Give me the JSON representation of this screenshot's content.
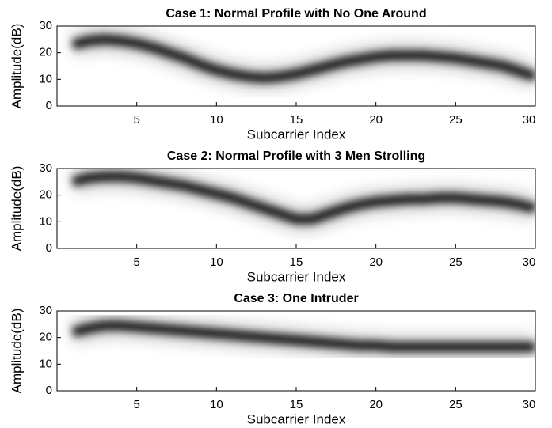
{
  "chart_data": [
    {
      "type": "line",
      "title": "Case 1: Normal Profile with No One Around",
      "xlabel": "Subcarrier Index",
      "ylabel": "Amplitude(dB)",
      "x": [
        1,
        2,
        3,
        4,
        5,
        6,
        7,
        8,
        9,
        10,
        11,
        12,
        13,
        14,
        15,
        16,
        17,
        18,
        19,
        20,
        21,
        22,
        23,
        24,
        25,
        26,
        27,
        28,
        29,
        30
      ],
      "values": [
        23,
        24.5,
        25,
        24.5,
        23.5,
        22,
        20,
        18,
        15.5,
        13.5,
        12,
        11,
        10.5,
        11,
        12,
        13.5,
        15,
        16.5,
        17.5,
        18.5,
        19,
        19,
        19,
        18.5,
        18,
        17,
        16,
        15,
        13,
        11
      ],
      "color": "#000000",
      "xlim": [
        0,
        30
      ],
      "ylim": [
        0,
        30
      ],
      "xticks": [
        5,
        10,
        15,
        20,
        25,
        30
      ],
      "yticks": [
        0,
        10,
        20,
        30
      ]
    },
    {
      "type": "line",
      "title": "Case 2: Normal Profile with 3 Men Strolling",
      "xlabel": "Subcarrier Index",
      "ylabel": "Amplitude(dB)",
      "x": [
        1,
        2,
        3,
        4,
        5,
        6,
        7,
        8,
        9,
        10,
        11,
        12,
        13,
        14,
        15,
        16,
        17,
        18,
        19,
        20,
        21,
        22,
        23,
        24,
        25,
        26,
        27,
        28,
        29,
        30
      ],
      "values": [
        25,
        26.5,
        27,
        27,
        26.5,
        25.5,
        24.5,
        23.5,
        22,
        20.5,
        19,
        17,
        15,
        13,
        11,
        11,
        13,
        15,
        16.5,
        17.5,
        18,
        18.5,
        18.5,
        19,
        19,
        18.5,
        18,
        17.5,
        16.5,
        15
      ],
      "color": "#000000",
      "xlim": [
        0,
        30
      ],
      "ylim": [
        0,
        30
      ],
      "xticks": [
        5,
        10,
        15,
        20,
        25,
        30
      ],
      "yticks": [
        0,
        10,
        20,
        30
      ]
    },
    {
      "type": "line",
      "title": "Case 3: One Intruder",
      "xlabel": "Subcarrier Index",
      "ylabel": "Amplitude(dB)",
      "x": [
        1,
        2,
        3,
        4,
        5,
        6,
        7,
        8,
        9,
        10,
        11,
        12,
        13,
        14,
        15,
        16,
        17,
        18,
        19,
        20,
        21,
        22,
        23,
        24,
        25,
        26,
        27,
        28,
        29,
        30
      ],
      "values": [
        22,
        23.5,
        24.5,
        24.5,
        24,
        23.5,
        23,
        22.5,
        22,
        21.5,
        21,
        20.5,
        20,
        19.5,
        19,
        18.5,
        18,
        17.5,
        17,
        17,
        16.5,
        16.5,
        16.5,
        16.5,
        16.5,
        16.5,
        16.5,
        16.5,
        16.5,
        16.5
      ],
      "color": "#000000",
      "xlim": [
        0,
        30
      ],
      "ylim": [
        0,
        30
      ],
      "xticks": [
        5,
        10,
        15,
        20,
        25,
        30
      ],
      "yticks": [
        0,
        10,
        20,
        30
      ]
    }
  ]
}
